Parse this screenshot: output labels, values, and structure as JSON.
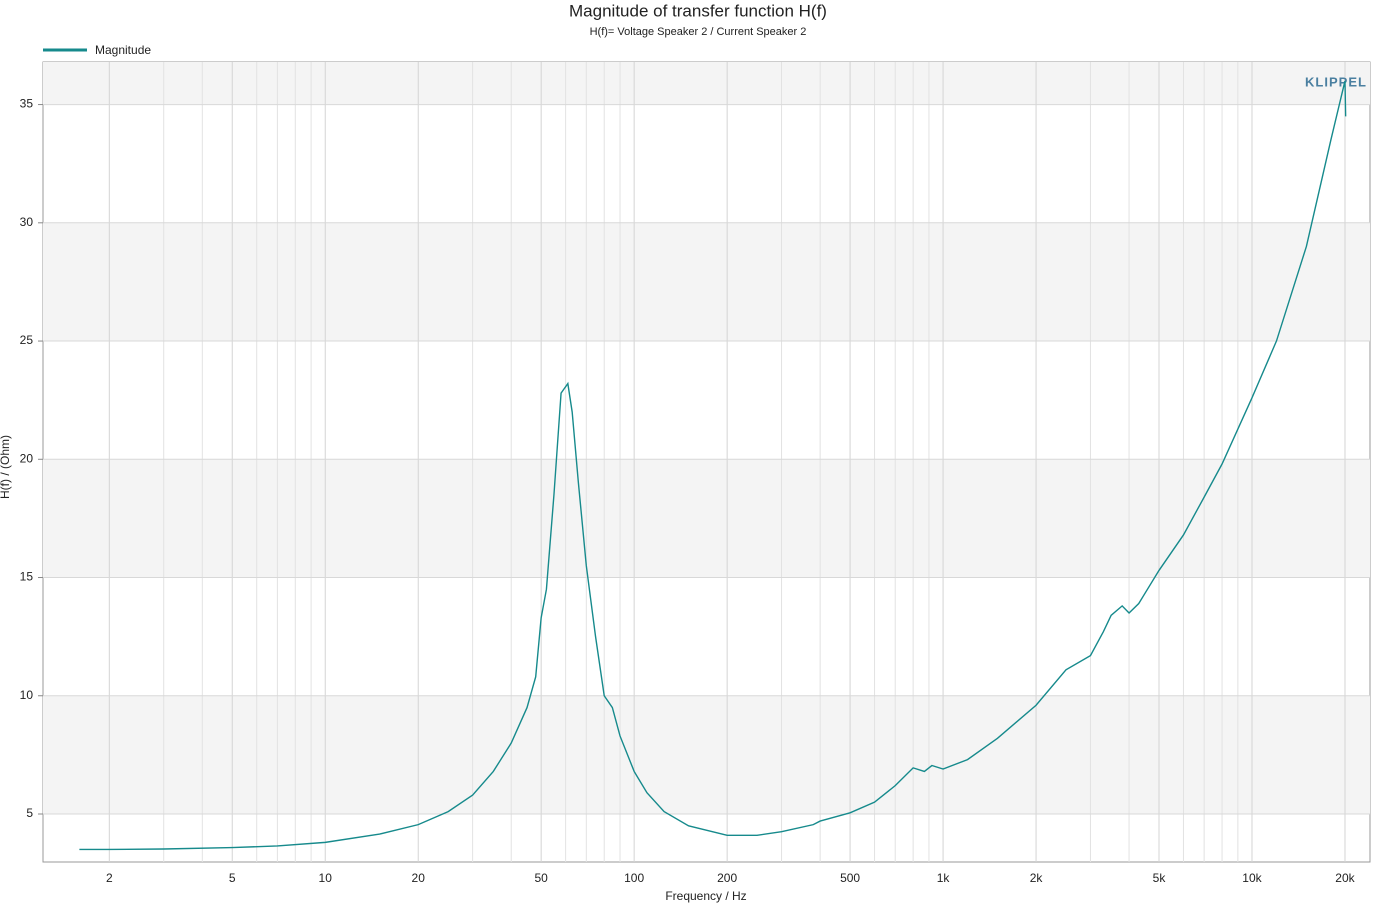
{
  "chart_data": {
    "type": "line",
    "title": "Magnitude of transfer function H(f)",
    "subtitle": "H(f)= Voltage Speaker 2 / Current Speaker 2",
    "xlabel": "Frequency / Hz",
    "ylabel": "H(f) / (Ohm)",
    "watermark": "KLIPPEL",
    "xscale": "log",
    "grid": true,
    "legend": "top-left",
    "x": [
      1.6,
      2,
      3,
      5,
      7,
      10,
      15,
      20,
      25,
      30,
      35,
      40,
      45,
      48,
      50,
      52,
      55,
      58,
      61,
      63,
      66,
      70,
      75,
      80,
      85,
      90,
      100,
      110,
      125,
      150,
      200,
      250,
      300,
      380,
      400,
      500,
      600,
      700,
      800,
      870,
      920,
      1000,
      1200,
      1500,
      2000,
      2500,
      3000,
      3300,
      3500,
      3800,
      4000,
      4300,
      5000,
      6000,
      7000,
      8000,
      10000,
      12000,
      15000,
      18000,
      20000,
      20100
    ],
    "series": [
      {
        "name": "Magnitude",
        "color": "#168a8c",
        "values": [
          3.5,
          3.5,
          3.52,
          3.58,
          3.65,
          3.8,
          4.15,
          4.55,
          5.1,
          5.8,
          6.8,
          8.0,
          9.5,
          10.8,
          13.3,
          14.5,
          18.5,
          22.8,
          23.2,
          22.0,
          19.0,
          15.5,
          12.5,
          10.0,
          9.5,
          8.3,
          6.8,
          5.9,
          5.1,
          4.5,
          4.1,
          4.1,
          4.25,
          4.55,
          4.7,
          5.05,
          5.5,
          6.2,
          6.95,
          6.8,
          7.05,
          6.9,
          7.3,
          8.2,
          9.6,
          11.1,
          11.7,
          12.7,
          13.4,
          13.8,
          13.5,
          13.9,
          15.3,
          16.8,
          18.4,
          19.8,
          22.6,
          25.0,
          29.0,
          33.5,
          36.0,
          34.5
        ]
      }
    ],
    "xlim": [
      1.22,
      24100
    ],
    "ylim": [
      2.97,
      36.8
    ],
    "xticks": [
      2,
      5,
      10,
      20,
      50,
      100,
      200,
      500,
      {
        "value": 1000,
        "label": "1k"
      },
      {
        "value": 2000,
        "label": "2k"
      },
      {
        "value": 5000,
        "label": "5k"
      },
      {
        "value": 10000,
        "label": "10k"
      },
      {
        "value": 20000,
        "label": "20k"
      }
    ],
    "xminorticks": [
      3,
      4,
      6,
      7,
      8,
      9,
      30,
      40,
      60,
      70,
      80,
      90,
      300,
      400,
      600,
      700,
      800,
      900,
      3000,
      4000,
      6000,
      7000,
      8000,
      9000
    ],
    "yticks": [
      5,
      10,
      15,
      20,
      25,
      30,
      35
    ]
  }
}
